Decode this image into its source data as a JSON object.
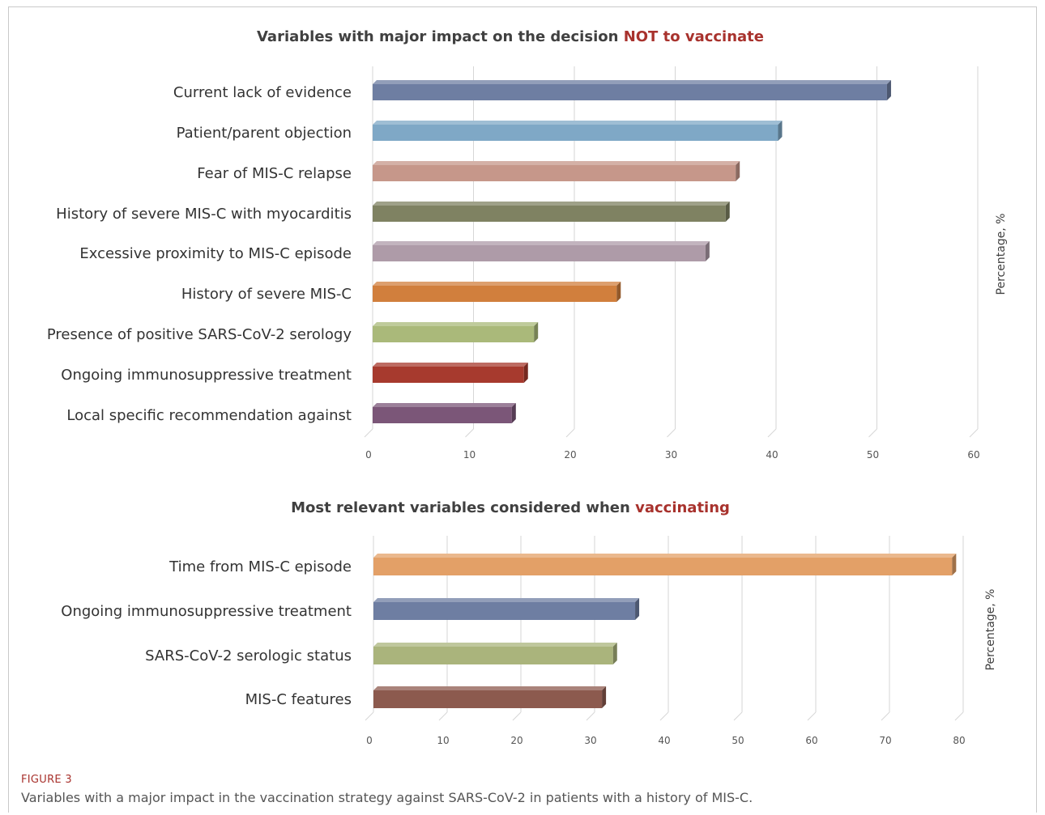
{
  "caption": {
    "heading": "FIGURE 3",
    "text": "Variables with a major impact in the vaccination strategy against SARS-CoV-2 in patients with a history of MIS-C."
  },
  "chart_data": [
    {
      "type": "bar",
      "orientation": "horizontal",
      "title_parts": [
        "Variables with major impact on the decision ",
        "NOT to vaccinate"
      ],
      "title_highlight_color": "#a8322d",
      "ylabel": "Percentage, %",
      "xlim": [
        0,
        60
      ],
      "ticks": [
        0,
        10,
        20,
        30,
        40,
        50,
        60
      ],
      "grid": true,
      "categories": [
        "Current lack of evidence",
        "Patient/parent objection",
        "Fear of MIS-C relapse",
        "History of severe MIS-C with myocarditis",
        "Excessive proximity to MIS-C episode",
        "History of severe MIS-C",
        "Presence of positive SARS-CoV-2 serology",
        "Ongoing immunosuppressive treatment",
        "Local specific recommendation against"
      ],
      "values": [
        51,
        40.2,
        36,
        35,
        33,
        24.2,
        16,
        15,
        13.8
      ],
      "colors": [
        "#6e7ea2",
        "#7fa8c6",
        "#c6978a",
        "#7f8262",
        "#ae9ba8",
        "#d17f3d",
        "#aab97a",
        "#a73a2e",
        "#7b5678"
      ]
    },
    {
      "type": "bar",
      "orientation": "horizontal",
      "title_parts": [
        "Most relevant variables considered when ",
        "vaccinating"
      ],
      "title_highlight_color": "#a8322d",
      "ylabel": "Percentage, %",
      "xlim": [
        0,
        80
      ],
      "ticks": [
        0,
        10,
        20,
        30,
        40,
        50,
        60,
        70,
        80
      ],
      "grid": true,
      "categories": [
        "Time from MIS-C episode",
        "Ongoing immunosuppressive treatment",
        "SARS-CoV-2 serologic status",
        "MIS-C features"
      ],
      "values": [
        78.5,
        35.5,
        32.5,
        31
      ],
      "colors": [
        "#e3a067",
        "#6e7ea2",
        "#aab47c",
        "#8c5a4e"
      ]
    }
  ]
}
